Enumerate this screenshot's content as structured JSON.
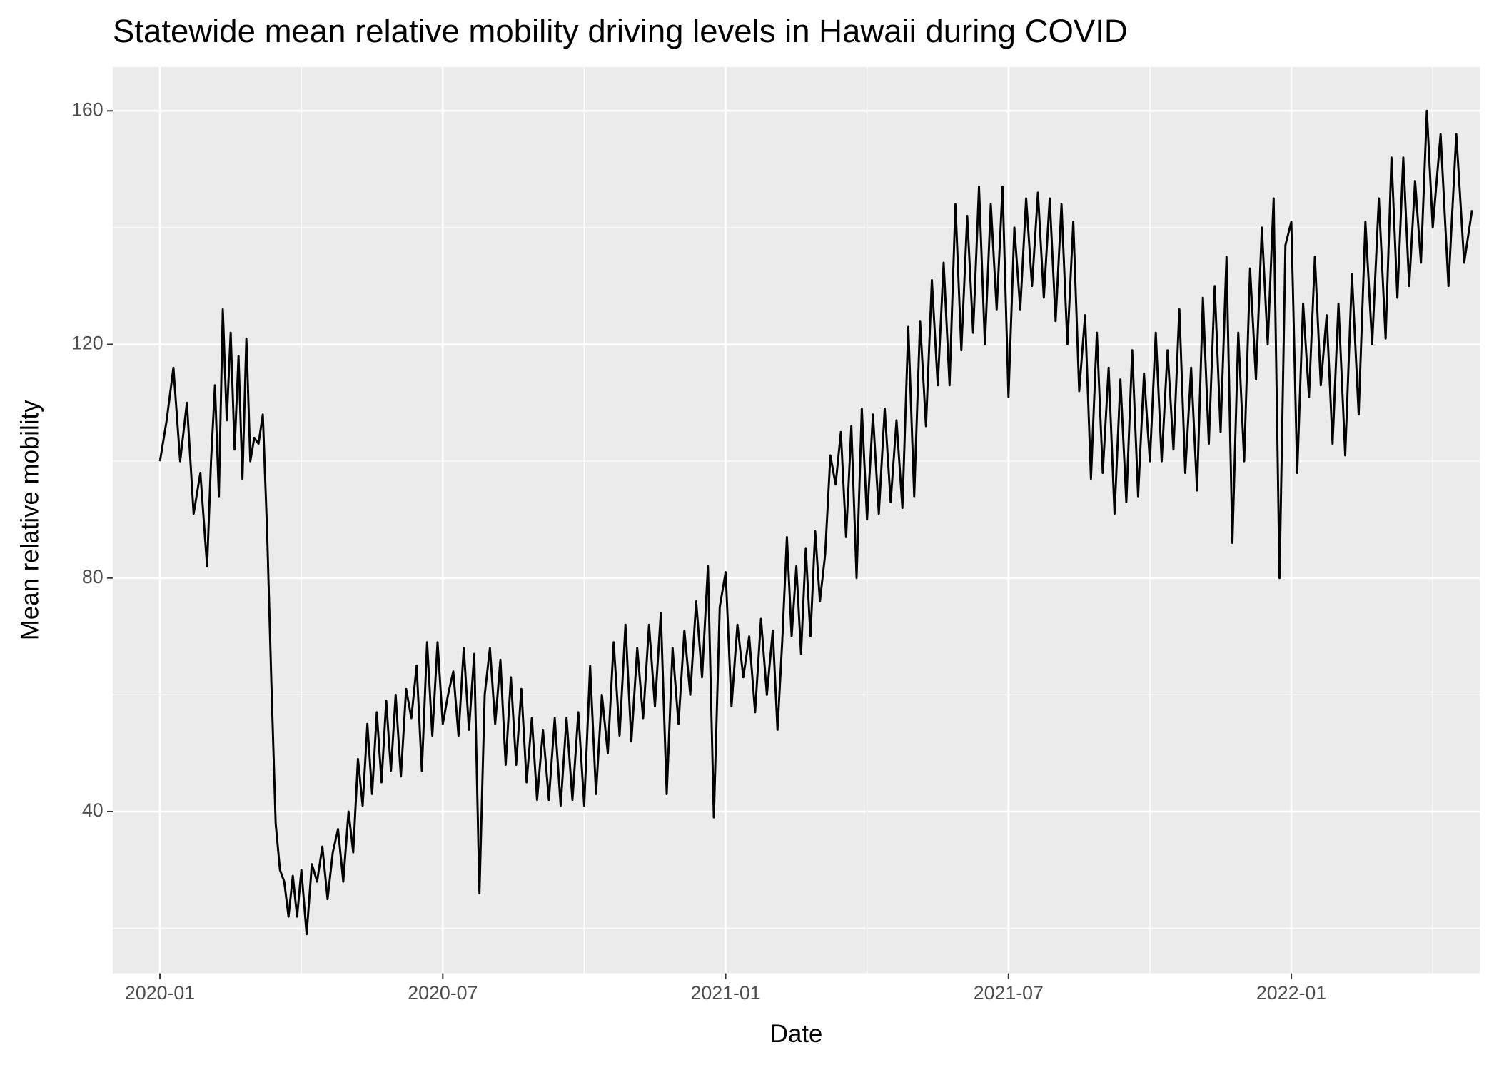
{
  "chart_data": {
    "type": "line",
    "title": "Statewide mean relative mobility driving levels in Hawaii during COVID",
    "x_label": "Date",
    "y_label": "Mean relative mobility",
    "x": [
      "2020-01",
      "2020-02",
      "2020-03",
      "2020-04",
      "2020-05",
      "2020-06",
      "2020-07",
      "2020-08",
      "2020-09",
      "2020-10",
      "2020-11",
      "2020-12",
      "2021-01",
      "2021-02",
      "2021-03",
      "2021-04",
      "2021-05",
      "2021-06",
      "2021-07",
      "2021-08",
      "2021-09",
      "2021-10",
      "2021-11",
      "2021-12",
      "2022-01",
      "2022-02",
      "2022-03",
      "2022-04"
    ],
    "values": [
      [
        100,
        107,
        116,
        100,
        110,
        91,
        98
      ],
      [
        82,
        100,
        113,
        94,
        126,
        107,
        122,
        102,
        118,
        97,
        121,
        100
      ],
      [
        104,
        103,
        108,
        88,
        62,
        38,
        30,
        28,
        22,
        29,
        22
      ],
      [
        30,
        19,
        31,
        28,
        34,
        25,
        33,
        37,
        28
      ],
      [
        40,
        33,
        49,
        41,
        55,
        43,
        57,
        45,
        59,
        47
      ],
      [
        60,
        46,
        61,
        56,
        65,
        47,
        69,
        53,
        69
      ],
      [
        55,
        60,
        64,
        53,
        68,
        54,
        67,
        26,
        60
      ],
      [
        68,
        55,
        66,
        48,
        63,
        48,
        61,
        45,
        56
      ],
      [
        42,
        54,
        42,
        56,
        41,
        56,
        42,
        57
      ],
      [
        41,
        65,
        43,
        60,
        50,
        69,
        53,
        72
      ],
      [
        52,
        68,
        56,
        72,
        58,
        74,
        43,
        68
      ],
      [
        55,
        71,
        60,
        76,
        63,
        82,
        39,
        75
      ],
      [
        81,
        58,
        72,
        63,
        70,
        57,
        73,
        60
      ],
      [
        71,
        54,
        69,
        87,
        70,
        82,
        67,
        85,
        70,
        88
      ],
      [
        76,
        84,
        101,
        96,
        105,
        87,
        106,
        80,
        109
      ],
      [
        90,
        108,
        91,
        109,
        93,
        107,
        92,
        123
      ],
      [
        94,
        124,
        106,
        131,
        113,
        134,
        113,
        144
      ],
      [
        119,
        142,
        122,
        147,
        120,
        144,
        126,
        147
      ],
      [
        111,
        140,
        126,
        145,
        130,
        146,
        128,
        145
      ],
      [
        124,
        144,
        120,
        141,
        112,
        125,
        97,
        122
      ],
      [
        98,
        116,
        91,
        114,
        93,
        119,
        94,
        115
      ],
      [
        100,
        122,
        100,
        119,
        102,
        126,
        98,
        116
      ],
      [
        95,
        128,
        103,
        130,
        105,
        135,
        86,
        122
      ],
      [
        100,
        133,
        114,
        140,
        120,
        145,
        80,
        137
      ],
      [
        141,
        98,
        127,
        111,
        135,
        113,
        125,
        103
      ],
      [
        127,
        101,
        132,
        108,
        141,
        120,
        145
      ],
      [
        121,
        152,
        128,
        152,
        130,
        148,
        134,
        160
      ],
      [
        140,
        156,
        130,
        156,
        134,
        143
      ]
    ],
    "color": "#000000",
    "xlim": [
      "2019-12",
      "2022-05"
    ],
    "xticks": [
      "2020-01",
      "2020-07",
      "2021-01",
      "2021-07",
      "2022-01"
    ],
    "ylim": [
      12.3,
      167.5
    ],
    "yticks": [
      40,
      80,
      120,
      160
    ],
    "grid": true
  }
}
